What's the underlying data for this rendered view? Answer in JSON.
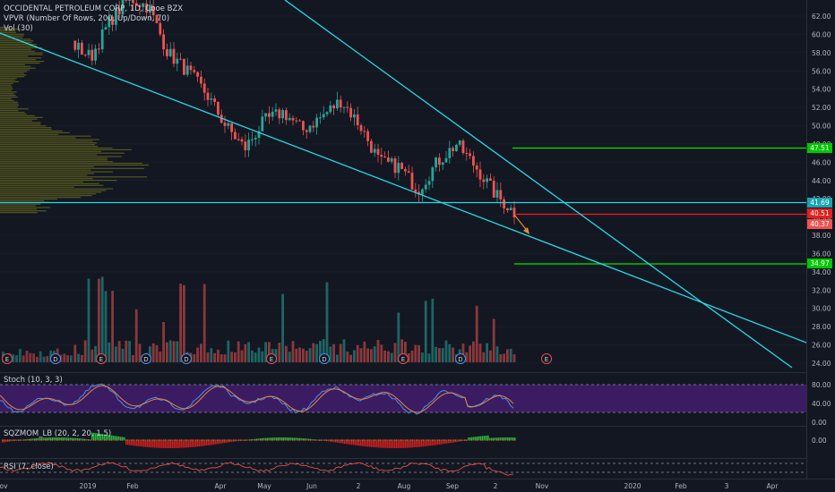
{
  "chart_legend": {
    "symbol_line": "OCCIDENTAL PETROLEUM CORP, 1D, Cboe BZX",
    "vpvr_line": "VPVR (Number Of Rows, 200, Up/Down, 70)",
    "vol_line": "Vol (30)"
  },
  "panes": {
    "stoch_label": "Stoch (10, 3, 3)",
    "sqz_label": "SQZMOM_LB (20, 2, 20, 1.5)",
    "rsi_label": "RSI (7, close)"
  },
  "price_axis": {
    "ticks": [
      "62.00",
      "60.00",
      "58.00",
      "56.00",
      "54.00",
      "52.00",
      "50.00",
      "48.00",
      "46.00",
      "44.00",
      "42.00",
      "40.00",
      "38.00",
      "36.00",
      "34.00",
      "32.00",
      "30.00",
      "28.00",
      "26.00",
      "24.00"
    ]
  },
  "stoch_axis": {
    "ticks": [
      "80.00",
      "40.00",
      "0.00"
    ]
  },
  "sqz_axis": {
    "ticks": [
      "0.00"
    ]
  },
  "time_axis": {
    "labels": [
      "ov",
      "2019",
      "Feb",
      "Apr",
      "May",
      "Jun",
      "2",
      "Aug",
      "Sep",
      "2",
      "Nov",
      "2020",
      "Feb",
      "3",
      "Apr"
    ]
  },
  "price_tags": {
    "target_high": "47.51",
    "resistance": "41.69",
    "last": "40.51",
    "prev": "40.37",
    "target_low": "34.97"
  },
  "events": {
    "earnings": "E",
    "dividend": "D"
  },
  "colors": {
    "bg": "#131722",
    "up": "#26a69a",
    "down": "#ef5350",
    "trendline": "#26d9e6",
    "target": "#00e600",
    "resistance_line": "#ff1a1a",
    "stoch_fill": "#4a1f7a",
    "vpvr": "#8a8a1a"
  },
  "chart_data": {
    "type": "candlestick",
    "title": "OCCIDENTAL PETROLEUM CORP, 1D, Cboe BZX",
    "ylim": [
      23,
      63.5
    ],
    "x_labels": [
      "ov",
      "2019",
      "Feb",
      "Apr",
      "May",
      "Jun",
      "2",
      "Aug",
      "Sep",
      "2",
      "Nov",
      "2020",
      "Feb",
      "3",
      "Apr"
    ],
    "horizontal_levels": [
      47.51,
      41.69,
      40.51,
      34.97
    ],
    "close_path": [
      {
        "x": "Jan 2019",
        "y": 59.0
      },
      {
        "x": "early Jan",
        "y": 57.5
      },
      {
        "x": "mid Jan",
        "y": 61.5
      },
      {
        "x": "Feb",
        "y": 64.0
      },
      {
        "x": "Apr",
        "y": 63.0
      },
      {
        "x": "late Apr",
        "y": 58.0
      },
      {
        "x": "early May",
        "y": 56.0
      },
      {
        "x": "May",
        "y": 53.5
      },
      {
        "x": "late May",
        "y": 50.0
      },
      {
        "x": "Jun",
        "y": 47.5
      },
      {
        "x": "mid Jun",
        "y": 50.5
      },
      {
        "x": "late Jun",
        "y": 51.5
      },
      {
        "x": "early Jul",
        "y": 49.5
      },
      {
        "x": "mid Jul",
        "y": 51.0
      },
      {
        "x": "late Jul",
        "y": 52.8
      },
      {
        "x": "Aug",
        "y": 50.0
      },
      {
        "x": "early Aug",
        "y": 46.0
      },
      {
        "x": "mid Aug",
        "y": 45.5
      },
      {
        "x": "late Aug",
        "y": 43.0
      },
      {
        "x": "Sep",
        "y": 46.0
      },
      {
        "x": "mid Sep",
        "y": 48.0
      },
      {
        "x": "late Sep",
        "y": 45.5
      },
      {
        "x": "early Oct",
        "y": 42.5
      },
      {
        "x": "Oct",
        "y": 40.5
      }
    ],
    "trendlines": [
      {
        "name": "",
        "from": {
          "x": "Nov 2018",
          "y": 60.2
        },
        "to": {
          "x": "Apr 2020",
          "y": 25.5
        }
      },
      {
        "name": "",
        "from": {
          "x": "Apr 2019",
          "y": 64.5
        },
        "to": {
          "x": "Apr 2020",
          "y": 24.0
        }
      }
    ]
  }
}
